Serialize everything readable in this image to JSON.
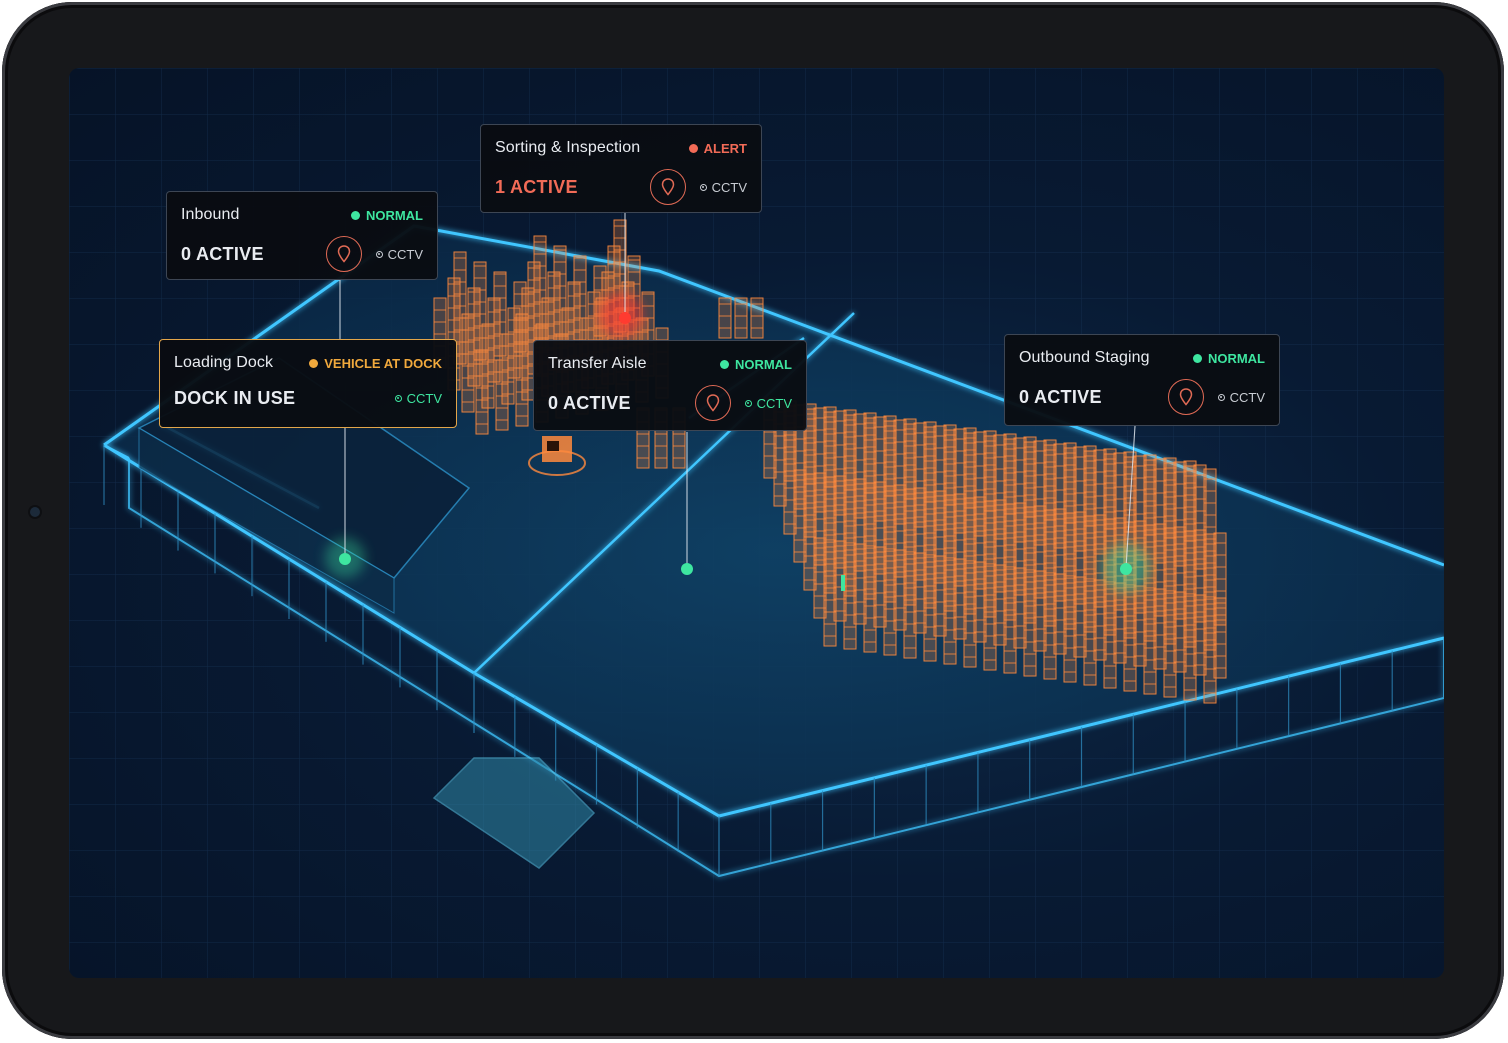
{
  "colors": {
    "normal": "#3ee6a0",
    "alert": "#f26b57",
    "warning": "#f1a93d",
    "wall": "#3fc6ff",
    "rack": "#ff8a3d"
  },
  "zones": [
    {
      "title": "Inbound",
      "status": "NORMAL",
      "metric": "0 ACTIVE",
      "camera": "CCTV",
      "icon": "location-pin-icon"
    },
    {
      "title": "Sorting & Inspection",
      "status": "ALERT",
      "metric": "1 ACTIVE",
      "camera": "CCTV",
      "icon": "location-pin-icon"
    },
    {
      "title": "Loading Dock",
      "status": "VEHICLE AT DOCK",
      "metric": "DOCK IN USE",
      "camera": "CCTV"
    },
    {
      "title": "Transfer Aisle",
      "status": "NORMAL",
      "metric": "0 ACTIVE",
      "camera": "CCTV",
      "icon": "location-pin-icon"
    },
    {
      "title": "Outbound Staging",
      "status": "NORMAL",
      "metric": "0 ACTIVE",
      "camera": "CCTV",
      "icon": "location-pin-icon"
    }
  ]
}
